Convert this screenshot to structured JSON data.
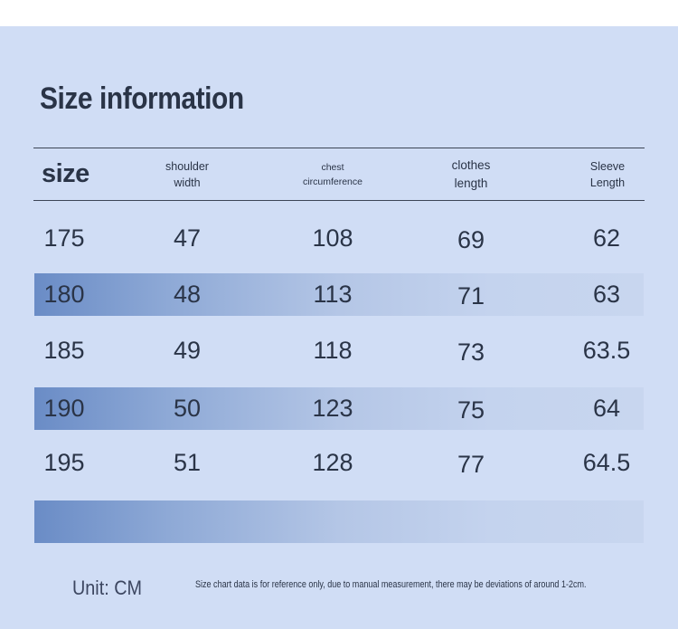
{
  "title": "Size information",
  "headers": {
    "size": "size",
    "shoulder": "shoulder\nwidth",
    "chest": "chest\ncircumference",
    "clothes": "clothes\nlength",
    "sleeve": "Sleeve\nLength"
  },
  "rows": [
    {
      "size": "175",
      "shoulder": "47",
      "chest": "108",
      "length": "69",
      "sleeve": "62",
      "shaded": false
    },
    {
      "size": "180",
      "shoulder": "48",
      "chest": "113",
      "length": "71",
      "sleeve": "63",
      "shaded": true
    },
    {
      "size": "185",
      "shoulder": "49",
      "chest": "118",
      "length": "73",
      "sleeve": "63.5",
      "shaded": false
    },
    {
      "size": "190",
      "shoulder": "50",
      "chest": "123",
      "length": "75",
      "sleeve": "64",
      "shaded": true
    },
    {
      "size": "195",
      "shoulder": "51",
      "chest": "128",
      "length": "77",
      "sleeve": "64.5",
      "shaded": false
    }
  ],
  "footer": {
    "unit": "Unit: CM",
    "note": "Size chart data is for reference only, due to manual measurement, there may be deviations of around 1-2cm."
  },
  "colors": {
    "panel": "#d0ddf5",
    "band_start": "#6a8cc6",
    "band_end": "#c8d6ef",
    "text": "#2a3447"
  }
}
